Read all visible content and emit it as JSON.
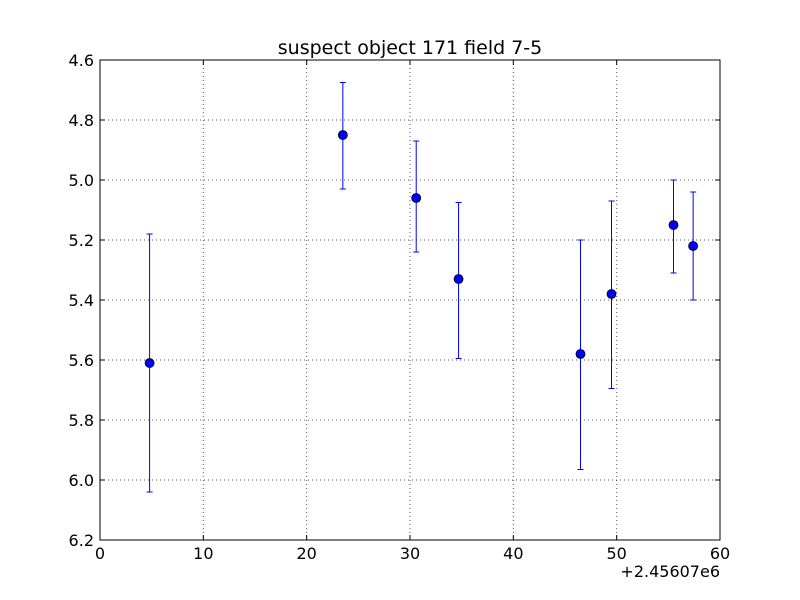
{
  "chart_data": {
    "type": "scatter",
    "title": "suspect object 171 field 7-5",
    "xlabel": "",
    "ylabel": "",
    "x_offset_label": "+2.45607e6",
    "xlim": [
      0,
      60
    ],
    "ylim": [
      4.6,
      6.2
    ],
    "y_inverted": true,
    "grid": true,
    "x_ticks": [
      0,
      10,
      20,
      30,
      40,
      50,
      60
    ],
    "x_tick_labels": [
      "0",
      "10",
      "20",
      "30",
      "40",
      "50",
      "60"
    ],
    "y_ticks": [
      4.6,
      4.8,
      5.0,
      5.2,
      5.4,
      5.6,
      5.8,
      6.0,
      6.2
    ],
    "y_tick_labels": [
      "4.6",
      "4.8",
      "5.0",
      "5.2",
      "5.4",
      "5.6",
      "5.8",
      "6.0",
      "6.2"
    ],
    "series": [
      {
        "color": "#0000ff",
        "marker": "circle",
        "points": [
          {
            "x": 4.8,
            "y": 5.61,
            "yerr_low": 5.18,
            "yerr_high": 6.04
          },
          {
            "x": 23.5,
            "y": 4.85,
            "yerr_low": 4.675,
            "yerr_high": 5.03
          },
          {
            "x": 30.6,
            "y": 5.06,
            "yerr_low": 4.87,
            "yerr_high": 5.24
          },
          {
            "x": 34.7,
            "y": 5.33,
            "yerr_low": 5.075,
            "yerr_high": 5.595
          },
          {
            "x": 46.5,
            "y": 5.58,
            "yerr_low": 5.2,
            "yerr_high": 5.965
          },
          {
            "x": 49.5,
            "y": 5.38,
            "yerr_low": 5.07,
            "yerr_high": 5.695
          },
          {
            "x": 55.5,
            "y": 5.15,
            "yerr_low": 5.0,
            "yerr_high": 5.31
          },
          {
            "x": 57.4,
            "y": 5.22,
            "yerr_low": 5.04,
            "yerr_high": 5.4
          }
        ]
      }
    ]
  }
}
